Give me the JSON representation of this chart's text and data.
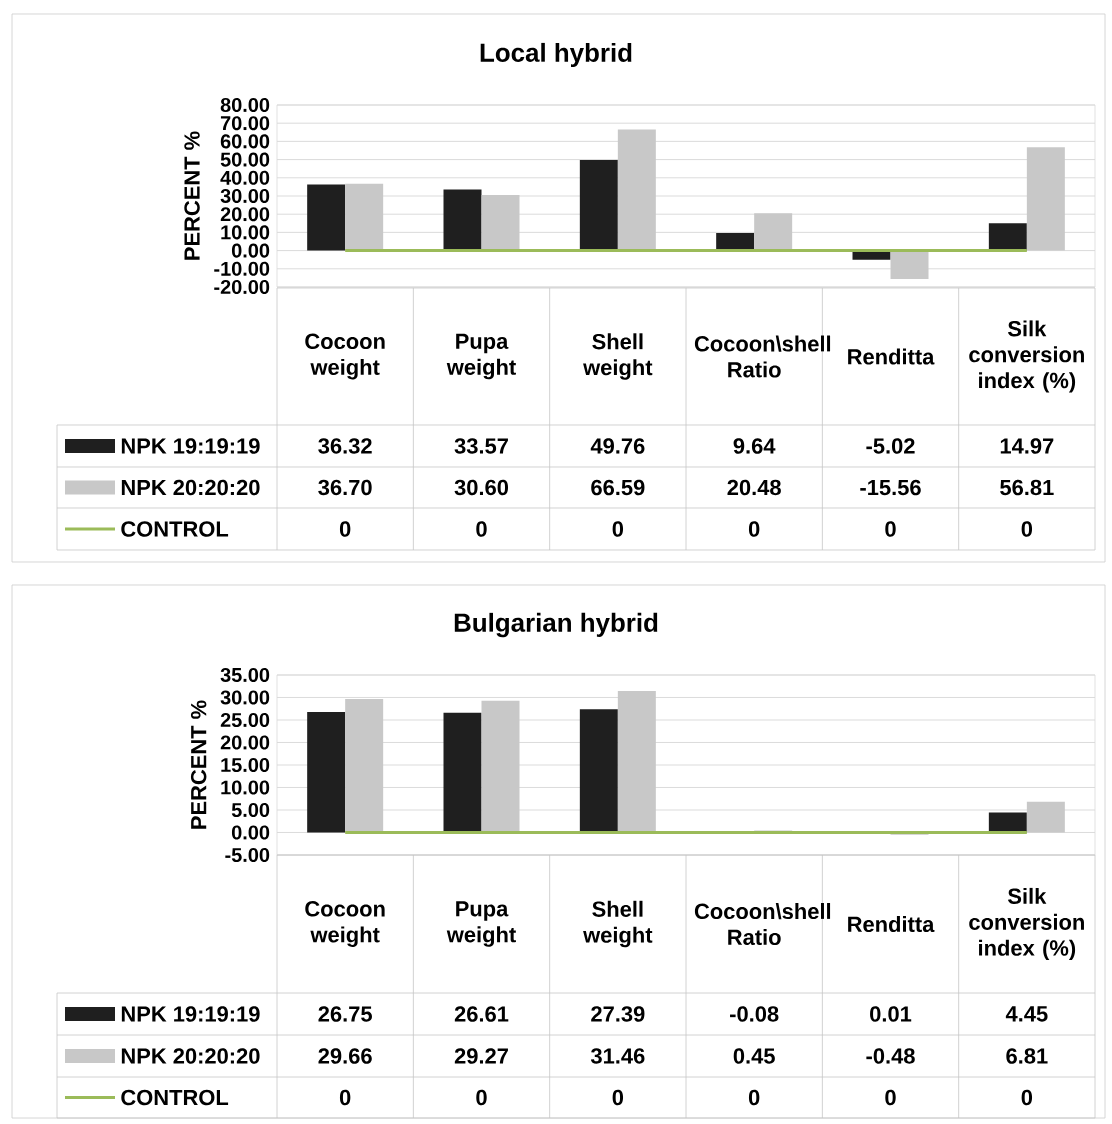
{
  "chart_data": [
    {
      "type": "bar",
      "title": "Local hybrid",
      "ylabel": "PERCENT %",
      "categories": [
        "Cocoon weight",
        "Pupa weight",
        "Shell weight",
        "Cocoon\\shell Ratio",
        "Renditta",
        "Silk conversion index (%)"
      ],
      "series": [
        {
          "name": "NPK 19:19:19",
          "type": "bar",
          "color": "#1f1f1f",
          "values": [
            36.32,
            33.57,
            49.76,
            9.64,
            -5.02,
            14.97
          ],
          "value_labels": [
            "36.32",
            "33.57",
            "49.76",
            "9.64",
            "-5.02",
            "14.97"
          ]
        },
        {
          "name": "NPK 20:20:20",
          "type": "bar",
          "color": "#c8c8c8",
          "values": [
            36.7,
            30.6,
            66.59,
            20.48,
            -15.56,
            56.81
          ],
          "value_labels": [
            "36.70",
            "30.60",
            "66.59",
            "20.48",
            "-15.56",
            "56.81"
          ]
        },
        {
          "name": "CONTROL",
          "type": "line",
          "color": "#9bbb59",
          "values": [
            0,
            0,
            0,
            0,
            0,
            0
          ],
          "value_labels": [
            "0",
            "0",
            "0",
            "0",
            "0",
            "0"
          ]
        }
      ],
      "ylim": [
        -20,
        80
      ],
      "yticks": [
        {
          "value": -20,
          "label": "-20.00"
        },
        {
          "value": -10,
          "label": "-10.00"
        },
        {
          "value": 0,
          "label": "0.00"
        },
        {
          "value": 10,
          "label": "10.00"
        },
        {
          "value": 20,
          "label": "20.00"
        },
        {
          "value": 30,
          "label": "30.00"
        },
        {
          "value": 40,
          "label": "40.00"
        },
        {
          "value": 50,
          "label": "50.00"
        },
        {
          "value": 60,
          "label": "60.00"
        },
        {
          "value": 70,
          "label": "70.00"
        },
        {
          "value": 80,
          "label": "80.00"
        }
      ],
      "grid": "y",
      "legend": "bottom"
    },
    {
      "type": "bar",
      "title": "Bulgarian hybrid",
      "ylabel": "PERCENT %",
      "categories": [
        "Cocoon weight",
        "Pupa weight",
        "Shell weight",
        "Cocoon\\shell Ratio",
        "Renditta",
        "Silk conversion index (%)"
      ],
      "series": [
        {
          "name": "NPK 19:19:19",
          "type": "bar",
          "color": "#1f1f1f",
          "values": [
            26.75,
            26.61,
            27.39,
            -0.08,
            0.01,
            4.45
          ],
          "value_labels": [
            "26.75",
            "26.61",
            "27.39",
            "-0.08",
            "0.01",
            "4.45"
          ]
        },
        {
          "name": "NPK 20:20:20",
          "type": "bar",
          "color": "#c8c8c8",
          "values": [
            29.66,
            29.27,
            31.46,
            0.45,
            -0.48,
            6.81
          ],
          "value_labels": [
            "29.66",
            "29.27",
            "31.46",
            "0.45",
            "-0.48",
            "6.81"
          ]
        },
        {
          "name": "CONTROL",
          "type": "line",
          "color": "#9bbb59",
          "values": [
            0,
            0,
            0,
            0,
            0,
            0
          ],
          "value_labels": [
            "0",
            "0",
            "0",
            "0",
            "0",
            "0"
          ]
        }
      ],
      "ylim": [
        -5,
        35
      ],
      "yticks": [
        {
          "value": -5,
          "label": "-5.00"
        },
        {
          "value": 0,
          "label": "0.00"
        },
        {
          "value": 5,
          "label": "5.00"
        },
        {
          "value": 10,
          "label": "10.00"
        },
        {
          "value": 15,
          "label": "15.00"
        },
        {
          "value": 20,
          "label": "20.00"
        },
        {
          "value": 25,
          "label": "25.00"
        },
        {
          "value": 30,
          "label": "30.00"
        },
        {
          "value": 35,
          "label": "35.00"
        }
      ],
      "grid": "y",
      "legend": "bottom"
    }
  ]
}
